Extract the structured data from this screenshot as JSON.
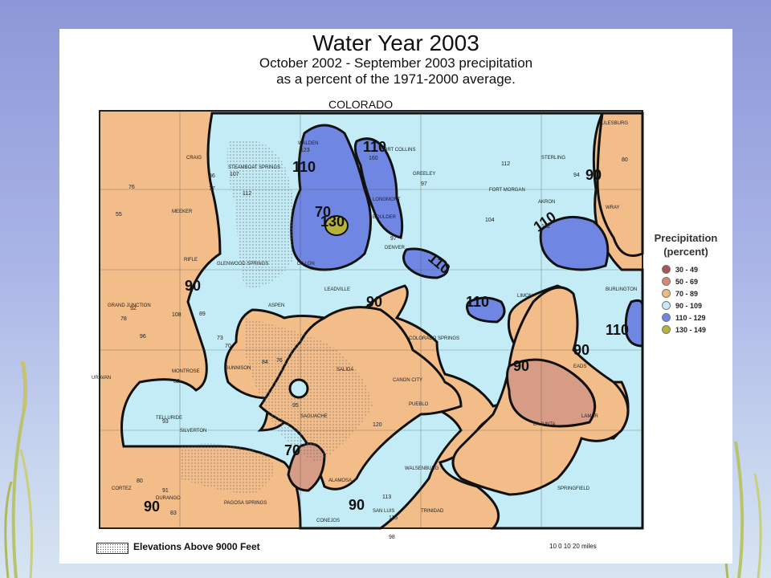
{
  "title": "Water Year 2003",
  "subtitle_line1": "October 2002 - September 2003 precipitation",
  "subtitle_line2": "as a percent of the 1971-2000 average.",
  "state_name": "COLORADO",
  "legend": {
    "title_line1": "Precipitation",
    "title_line2": "(percent)",
    "items": [
      {
        "label": "30 - 49",
        "color": "#a8565a"
      },
      {
        "label": "50 - 69",
        "color": "#d98a6e"
      },
      {
        "label": "70 - 89",
        "color": "#f0b97f"
      },
      {
        "label": "90 - 109",
        "color": "#c4ecf6"
      },
      {
        "label": "110 - 129",
        "color": "#6f87e2"
      },
      {
        "label": "130 - 149",
        "color": "#b5b33c"
      }
    ]
  },
  "contour_labels": [
    "110",
    "110",
    "130",
    "110",
    "110",
    "110",
    "110",
    "90",
    "90",
    "90",
    "90",
    "90",
    "90",
    "90",
    "70",
    "70"
  ],
  "city_labels": [
    "CRAIG",
    "STEAMBOAT SPRINGS",
    "WALDEN",
    "FORT COLLINS",
    "GREELEY",
    "STERLING",
    "JULESBURG",
    "MEEKER",
    "FORT MORGAN",
    "AKRON",
    "WRAY",
    "LONGMONT",
    "BOULDER",
    "DENVER",
    "RIFLE",
    "GLENWOOD SPRINGS",
    "DILLON",
    "LEADVILLE",
    "ASPEN",
    "GRAND JUNCTION",
    "BURLINGTON",
    "LIMON",
    "COLORADO SPRINGS",
    "GUNNISON",
    "SALIDA",
    "CANON CITY",
    "PUEBLO",
    "MONTROSE",
    "URAVAN",
    "TELLURIDE",
    "SILVERTON",
    "SAGUACHE",
    "EADS",
    "LAMAR",
    "LA JUNTA",
    "WALSENBURG",
    "ALAMOSA",
    "CORTEZ",
    "DURANGO",
    "PAGOSA SPRINGS",
    "CONEJOS",
    "SAN LUIS",
    "TRINIDAD",
    "SPRINGFIELD"
  ],
  "station_values": [
    "123",
    "160",
    "107",
    "86",
    "77",
    "76",
    "55",
    "112",
    "97",
    "112",
    "104",
    "112",
    "94",
    "80",
    "92",
    "78",
    "96",
    "89",
    "108",
    "73",
    "70",
    "84",
    "76",
    "82",
    "93",
    "80",
    "91",
    "83",
    "95",
    "97",
    "120",
    "113",
    "115",
    "98"
  ],
  "footnote": "Elevations Above 9000 Feet",
  "scale_text": "10  0  10  20 miles"
}
